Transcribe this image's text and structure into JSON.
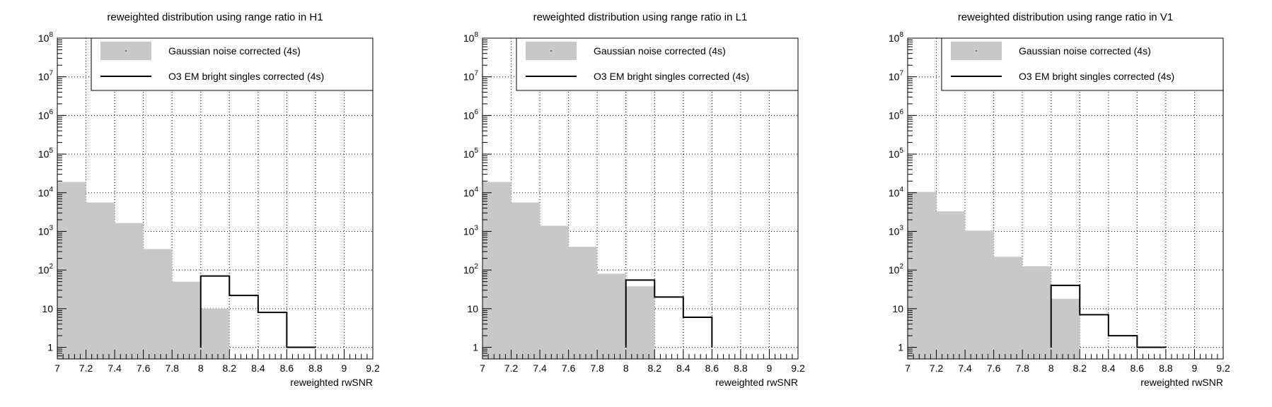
{
  "chart_data": [
    {
      "type": "histogram",
      "title": "reweighted distribution using range ratio in H1",
      "xlabel": "reweighted rwSNR",
      "ylabel": "",
      "xlim": [
        7,
        9.2
      ],
      "ylim": [
        0.5,
        100000000
      ],
      "yscale": "log",
      "grid": true,
      "bin_edges": [
        7.0,
        7.2,
        7.4,
        7.6,
        7.8,
        8.0,
        8.2,
        8.4,
        8.6,
        8.8,
        9.0,
        9.2
      ],
      "xticks": [
        "7",
        "7.2",
        "7.4",
        "7.6",
        "7.8",
        "8",
        "8.2",
        "8.4",
        "8.6",
        "8.8",
        "9",
        "9.2"
      ],
      "yticks": [
        {
          "value": 1,
          "base": "1",
          "exp": ""
        },
        {
          "value": 10,
          "base": "10",
          "exp": ""
        },
        {
          "value": 100,
          "base": "10",
          "exp": "2"
        },
        {
          "value": 1000,
          "base": "10",
          "exp": "3"
        },
        {
          "value": 10000,
          "base": "10",
          "exp": "4"
        },
        {
          "value": 100000,
          "base": "10",
          "exp": "5"
        },
        {
          "value": 1000000,
          "base": "10",
          "exp": "6"
        },
        {
          "value": 10000000,
          "base": "10",
          "exp": "7"
        },
        {
          "value": 100000000,
          "base": "10",
          "exp": "8"
        }
      ],
      "legend_position": "top-right",
      "series": [
        {
          "name": "Gaussian noise corrected (4s)",
          "style": "filled",
          "color": "#c8c8c8",
          "values": [
            19000,
            5600,
            1650,
            350,
            50,
            10,
            0,
            0,
            0,
            0,
            0
          ]
        },
        {
          "name": "O3 EM bright singles corrected (4s)",
          "style": "step",
          "color": "#000000",
          "values": [
            0,
            0,
            0,
            0,
            0,
            70,
            22,
            8,
            1,
            0,
            0
          ]
        }
      ]
    },
    {
      "type": "histogram",
      "title": "reweighted distribution using range ratio in L1",
      "xlabel": "reweighted rwSNR",
      "ylabel": "",
      "xlim": [
        7,
        9.2
      ],
      "ylim": [
        0.5,
        100000000
      ],
      "yscale": "log",
      "grid": true,
      "bin_edges": [
        7.0,
        7.2,
        7.4,
        7.6,
        7.8,
        8.0,
        8.2,
        8.4,
        8.6,
        8.8,
        9.0,
        9.2
      ],
      "xticks": [
        "7",
        "7.2",
        "7.4",
        "7.6",
        "7.8",
        "8",
        "8.2",
        "8.4",
        "8.6",
        "8.8",
        "9",
        "9.2"
      ],
      "yticks": [
        {
          "value": 1,
          "base": "1",
          "exp": ""
        },
        {
          "value": 10,
          "base": "10",
          "exp": ""
        },
        {
          "value": 100,
          "base": "10",
          "exp": "2"
        },
        {
          "value": 1000,
          "base": "10",
          "exp": "3"
        },
        {
          "value": 10000,
          "base": "10",
          "exp": "4"
        },
        {
          "value": 100000,
          "base": "10",
          "exp": "5"
        },
        {
          "value": 1000000,
          "base": "10",
          "exp": "6"
        },
        {
          "value": 10000000,
          "base": "10",
          "exp": "7"
        },
        {
          "value": 100000000,
          "base": "10",
          "exp": "8"
        }
      ],
      "legend_position": "top-right",
      "series": [
        {
          "name": "Gaussian noise corrected (4s)",
          "style": "filled",
          "color": "#c8c8c8",
          "values": [
            19000,
            5600,
            1400,
            400,
            80,
            38,
            0,
            0,
            0,
            0,
            0
          ]
        },
        {
          "name": "O3 EM bright singles corrected (4s)",
          "style": "step",
          "color": "#000000",
          "values": [
            0,
            0,
            0,
            0,
            0,
            55,
            20,
            6,
            0,
            0,
            0
          ]
        }
      ]
    },
    {
      "type": "histogram",
      "title": "reweighted distribution using range ratio in V1",
      "xlabel": "reweighted rwSNR",
      "ylabel": "",
      "xlim": [
        7,
        9.2
      ],
      "ylim": [
        0.5,
        100000000
      ],
      "yscale": "log",
      "grid": true,
      "bin_edges": [
        7.0,
        7.2,
        7.4,
        7.6,
        7.8,
        8.0,
        8.2,
        8.4,
        8.6,
        8.8,
        9.0,
        9.2
      ],
      "xticks": [
        "7",
        "7.2",
        "7.4",
        "7.6",
        "7.8",
        "8",
        "8.2",
        "8.4",
        "8.6",
        "8.8",
        "9",
        "9.2"
      ],
      "yticks": [
        {
          "value": 1,
          "base": "1",
          "exp": ""
        },
        {
          "value": 10,
          "base": "10",
          "exp": ""
        },
        {
          "value": 100,
          "base": "10",
          "exp": "2"
        },
        {
          "value": 1000,
          "base": "10",
          "exp": "3"
        },
        {
          "value": 10000,
          "base": "10",
          "exp": "4"
        },
        {
          "value": 100000,
          "base": "10",
          "exp": "5"
        },
        {
          "value": 1000000,
          "base": "10",
          "exp": "6"
        },
        {
          "value": 10000000,
          "base": "10",
          "exp": "7"
        },
        {
          "value": 100000000,
          "base": "10",
          "exp": "8"
        }
      ],
      "legend_position": "top-right",
      "series": [
        {
          "name": "Gaussian noise corrected (4s)",
          "style": "filled",
          "color": "#c8c8c8",
          "values": [
            10500,
            3300,
            1050,
            220,
            125,
            18,
            0,
            0,
            0,
            0,
            0
          ]
        },
        {
          "name": "O3 EM bright singles corrected (4s)",
          "style": "step",
          "color": "#000000",
          "values": [
            0,
            0,
            0,
            0,
            0,
            40,
            7,
            2,
            1,
            0,
            0
          ]
        }
      ]
    }
  ]
}
